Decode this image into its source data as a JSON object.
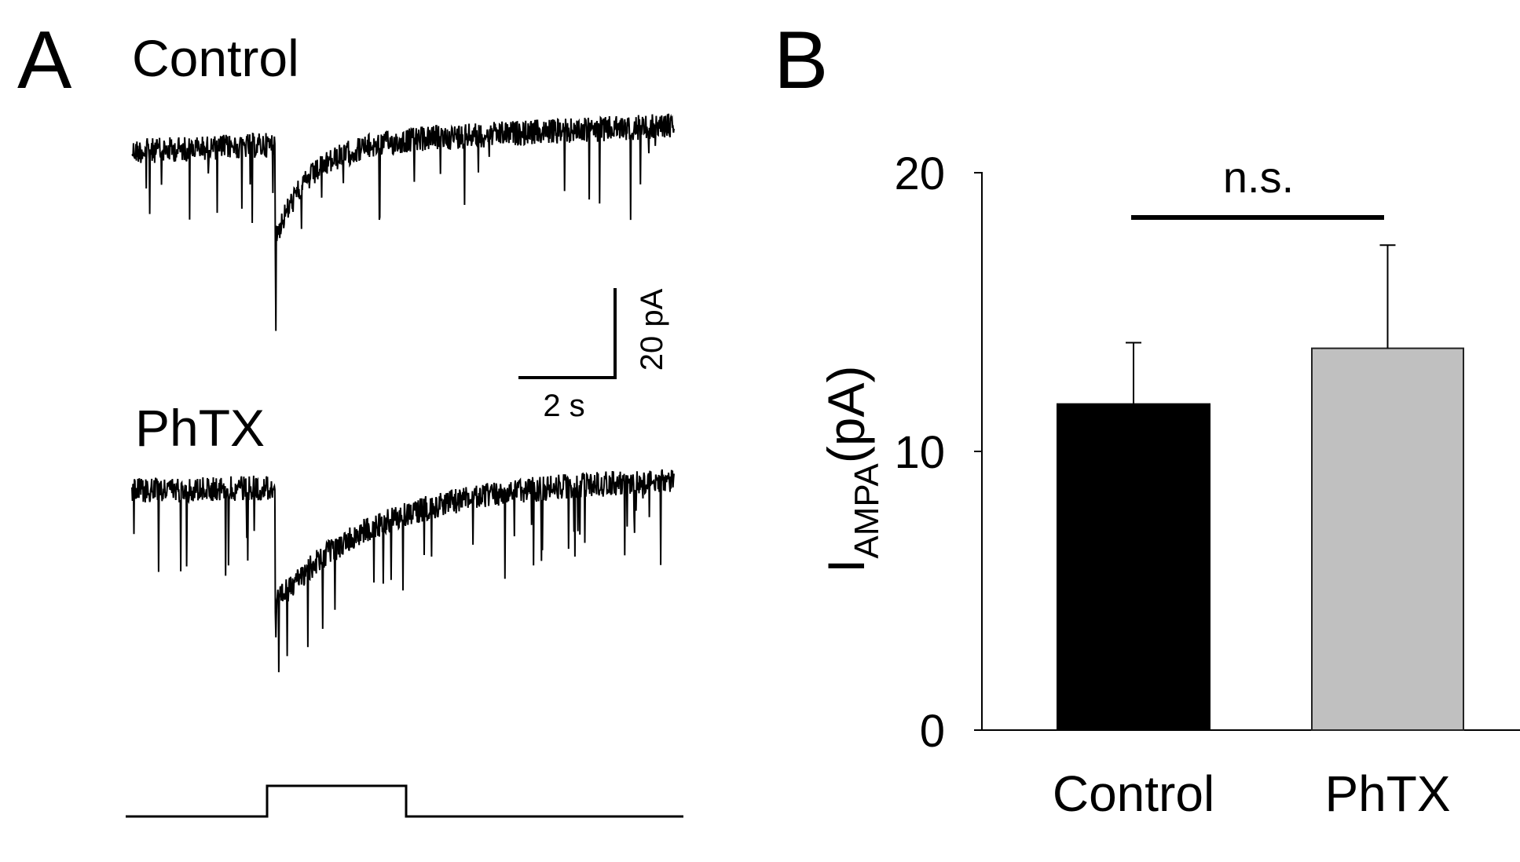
{
  "panels": {
    "a_letter": "A",
    "b_letter": "B"
  },
  "traces": [
    {
      "label": "Control"
    },
    {
      "label": "PhTX"
    }
  ],
  "scale_bar": {
    "current_label": "20 pA",
    "time_label": "2 s"
  },
  "colors": {
    "control_bar": "#000000",
    "phtx_bar": "#c0c0c0",
    "trace": "#000000"
  },
  "chart_data": {
    "type": "bar",
    "categories": [
      "Control",
      "PhTX"
    ],
    "values": [
      11.7,
      13.7
    ],
    "errors": [
      2.2,
      3.7
    ],
    "ylabel_main": "I",
    "ylabel_sub": "AMPA",
    "ylabel_unit": "(pA)",
    "ylim": [
      0,
      20
    ],
    "yticks": [
      "0",
      "10",
      "20"
    ],
    "significance": "n.s.",
    "grid": false,
    "legend": "none"
  }
}
